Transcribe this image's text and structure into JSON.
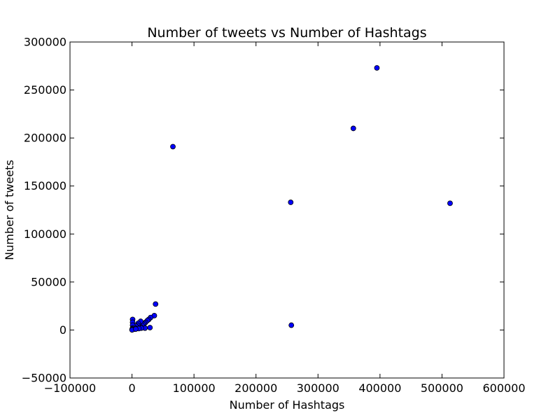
{
  "chart_data": {
    "type": "scatter",
    "title": "Number of tweets vs Number of Hashtags",
    "xlabel": "Number of Hashtags",
    "ylabel": "Number of tweets",
    "xlim": [
      -100000,
      600000
    ],
    "ylim": [
      -50000,
      300000
    ],
    "x_ticks": [
      -100000,
      0,
      100000,
      200000,
      300000,
      400000,
      500000,
      600000
    ],
    "x_tick_labels": [
      "−100000",
      "0",
      "100000",
      "200000",
      "300000",
      "400000",
      "500000",
      "600000"
    ],
    "y_ticks": [
      -50000,
      0,
      50000,
      100000,
      150000,
      200000,
      250000,
      300000
    ],
    "y_tick_labels": [
      "−50000",
      "0",
      "50000",
      "100000",
      "150000",
      "200000",
      "250000",
      "300000"
    ],
    "grid": false,
    "legend": "none",
    "marker_color": "#0000ff",
    "marker_edge_color": "#000000",
    "series": [
      {
        "points": [
          {
            "x": 395000,
            "y": 273000
          },
          {
            "x": 357000,
            "y": 210000
          },
          {
            "x": 66000,
            "y": 191000
          },
          {
            "x": 256000,
            "y": 133000
          },
          {
            "x": 513000,
            "y": 132000
          },
          {
            "x": 257000,
            "y": 5000
          },
          {
            "x": 38000,
            "y": 27000
          },
          {
            "x": 36000,
            "y": 15000
          },
          {
            "x": 30000,
            "y": 13000
          },
          {
            "x": 27000,
            "y": 11000
          },
          {
            "x": 25000,
            "y": 10000
          },
          {
            "x": 22000,
            "y": 8000
          },
          {
            "x": 20000,
            "y": 7000
          },
          {
            "x": 18000,
            "y": 6000
          },
          {
            "x": 16000,
            "y": 5000
          },
          {
            "x": 14000,
            "y": 9000
          },
          {
            "x": 13000,
            "y": 4000
          },
          {
            "x": 12000,
            "y": 3000
          },
          {
            "x": 10000,
            "y": 7000
          },
          {
            "x": 9000,
            "y": 5000
          },
          {
            "x": 8000,
            "y": 3000
          },
          {
            "x": 7000,
            "y": 2000
          },
          {
            "x": 6000,
            "y": 4000
          },
          {
            "x": 5000,
            "y": 2000
          },
          {
            "x": 4000,
            "y": 1000
          },
          {
            "x": 3000,
            "y": 3000
          },
          {
            "x": 2000,
            "y": 1000
          },
          {
            "x": 1000,
            "y": 11000
          },
          {
            "x": 1000,
            "y": 8000
          },
          {
            "x": 1000,
            "y": 5000
          },
          {
            "x": 1000,
            "y": 2000
          },
          {
            "x": 500,
            "y": 1000
          },
          {
            "x": 300,
            "y": 500
          },
          {
            "x": 200,
            "y": 300
          },
          {
            "x": 100,
            "y": 100
          },
          {
            "x": 29000,
            "y": 2500
          },
          {
            "x": 21000,
            "y": 2000
          },
          {
            "x": 15000,
            "y": 2000
          },
          {
            "x": 11000,
            "y": 1500
          },
          {
            "x": 6000,
            "y": 1000
          }
        ]
      }
    ]
  }
}
